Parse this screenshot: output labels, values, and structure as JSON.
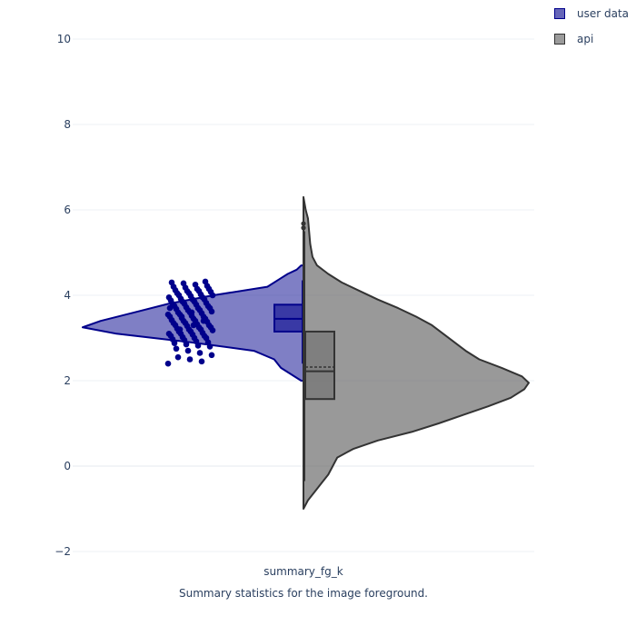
{
  "chart_data": {
    "type": "violin",
    "title": "",
    "xlabel": "Summary statistics for the image foreground.",
    "ylabel": "",
    "category": "summary_fg_k",
    "ylim": [
      -2.2,
      10.6
    ],
    "yticks": [
      -2,
      0,
      2,
      4,
      6,
      8,
      10
    ],
    "ytick_labels": [
      "−2",
      "0",
      "2",
      "4",
      "6",
      "8",
      "10"
    ],
    "grid": true,
    "legend_position": "top-right",
    "series": [
      {
        "name": "user data",
        "side": "negative",
        "fill_color": "#00008b",
        "line_color": "#00008b",
        "fill_opacity": 0.5,
        "points": "all",
        "kde": [
          [
            2.0,
            0.01
          ],
          [
            2.3,
            0.1
          ],
          [
            2.5,
            0.13
          ],
          [
            2.7,
            0.22
          ],
          [
            2.9,
            0.5
          ],
          [
            3.1,
            0.83
          ],
          [
            3.25,
            0.98
          ],
          [
            3.4,
            0.9
          ],
          [
            3.6,
            0.75
          ],
          [
            3.8,
            0.6
          ],
          [
            4.0,
            0.4
          ],
          [
            4.2,
            0.16
          ],
          [
            4.4,
            0.1
          ],
          [
            4.5,
            0.07
          ],
          [
            4.6,
            0.03
          ],
          [
            4.7,
            0.01
          ]
        ],
        "box": {
          "lower_fence": 2.4,
          "q1": 3.15,
          "median": 3.45,
          "q3": 3.78,
          "upper_fence": 4.35,
          "mean": 3.45
        },
        "jitter_points": [
          2.4,
          2.45,
          2.5,
          2.55,
          2.6,
          2.65,
          2.7,
          2.75,
          2.8,
          2.82,
          2.85,
          2.88,
          2.9,
          2.92,
          2.95,
          2.97,
          3.0,
          3.0,
          3.02,
          3.05,
          3.05,
          3.08,
          3.1,
          3.1,
          3.12,
          3.15,
          3.15,
          3.18,
          3.2,
          3.2,
          3.22,
          3.25,
          3.25,
          3.28,
          3.3,
          3.3,
          3.32,
          3.35,
          3.35,
          3.38,
          3.4,
          3.4,
          3.42,
          3.45,
          3.45,
          3.47,
          3.5,
          3.5,
          3.52,
          3.55,
          3.55,
          3.58,
          3.6,
          3.6,
          3.62,
          3.65,
          3.65,
          3.68,
          3.7,
          3.7,
          3.72,
          3.75,
          3.75,
          3.78,
          3.8,
          3.8,
          3.82,
          3.85,
          3.85,
          3.88,
          3.9,
          3.9,
          3.92,
          3.95,
          3.95,
          3.98,
          4.0,
          4.0,
          4.02,
          4.05,
          4.05,
          4.08,
          4.1,
          4.1,
          4.12,
          4.15,
          4.15,
          4.18,
          4.2,
          4.22,
          4.25,
          4.28,
          4.3,
          4.32,
          3.3,
          3.5,
          3.7,
          3.4,
          3.6,
          3.2
        ]
      },
      {
        "name": "api",
        "side": "positive",
        "fill_color": "#696969",
        "line_color": "#333333",
        "fill_opacity": 0.68,
        "points": "outliers",
        "kde": [
          [
            -1.0,
            0.0
          ],
          [
            -0.8,
            0.02
          ],
          [
            -0.6,
            0.05
          ],
          [
            -0.4,
            0.08
          ],
          [
            -0.2,
            0.11
          ],
          [
            0.0,
            0.13
          ],
          [
            0.2,
            0.15
          ],
          [
            0.4,
            0.22
          ],
          [
            0.6,
            0.33
          ],
          [
            0.8,
            0.48
          ],
          [
            1.0,
            0.6
          ],
          [
            1.2,
            0.71
          ],
          [
            1.4,
            0.82
          ],
          [
            1.6,
            0.92
          ],
          [
            1.8,
            0.98
          ],
          [
            1.95,
            1.0
          ],
          [
            2.1,
            0.97
          ],
          [
            2.3,
            0.88
          ],
          [
            2.5,
            0.78
          ],
          [
            2.7,
            0.72
          ],
          [
            2.9,
            0.67
          ],
          [
            3.1,
            0.62
          ],
          [
            3.3,
            0.57
          ],
          [
            3.5,
            0.5
          ],
          [
            3.7,
            0.42
          ],
          [
            3.9,
            0.33
          ],
          [
            4.1,
            0.25
          ],
          [
            4.3,
            0.17
          ],
          [
            4.5,
            0.11
          ],
          [
            4.7,
            0.06
          ],
          [
            4.9,
            0.04
          ],
          [
            5.2,
            0.03
          ],
          [
            5.5,
            0.025
          ],
          [
            5.8,
            0.02
          ],
          [
            6.0,
            0.01
          ],
          [
            6.3,
            0.0
          ]
        ],
        "box": {
          "lower_fence": -0.35,
          "q1": 1.57,
          "median": 2.22,
          "q3": 3.15,
          "upper_fence": 5.5,
          "mean": 2.32
        },
        "outliers": [
          5.58,
          5.68
        ]
      }
    ]
  }
}
